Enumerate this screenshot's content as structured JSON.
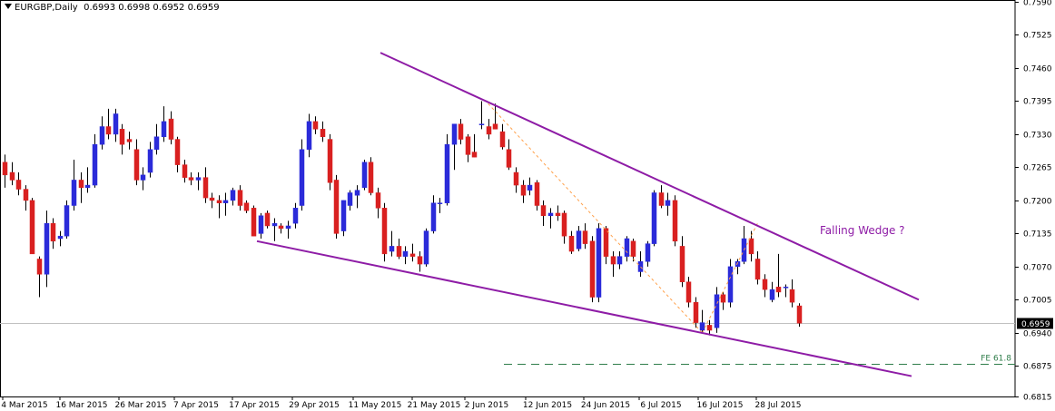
{
  "header": {
    "symbol": "EURGBP,Daily",
    "ohlc": "0.6993 0.6998 0.6952 0.6959"
  },
  "chart_data": {
    "type": "candlestick",
    "symbol": "EURGBP",
    "timeframe": "Daily",
    "ylim": [
      0.6815,
      0.759
    ],
    "y_ticks": [
      "0.7590",
      "0.7525",
      "0.7460",
      "0.7395",
      "0.7330",
      "0.7265",
      "0.7200",
      "0.7135",
      "0.7070",
      "0.7005",
      "0.6940",
      "0.6875",
      "0.6815"
    ],
    "x_ticks": [
      "4 Mar 2015",
      "16 Mar 2015",
      "26 Mar 2015",
      "7 Apr 2015",
      "17 Apr 2015",
      "29 Apr 2015",
      "11 May 2015",
      "21 May 2015",
      "2 Jun 2015",
      "12 Jun 2015",
      "24 Jun 2015",
      "6 Jul 2015",
      "16 Jul 2015",
      "28 Jul 2015"
    ],
    "current_price": "0.6959",
    "colors": {
      "bull": "#2b2bd9",
      "bear": "#d92020",
      "wedge": "#8e1ca6",
      "fib_line": "#ffa04a",
      "fe_line": "#2f7d4a",
      "price_line": "#c0c0c0",
      "annotation": "#8e1ca6"
    },
    "annotations": {
      "pattern": "Falling Wedge ?",
      "fe_level_label": "FE 61.8"
    },
    "fe_level_price": 0.688,
    "candles": [
      {
        "o": 0.7275,
        "h": 0.729,
        "l": 0.7225,
        "c": 0.725
      },
      {
        "o": 0.7255,
        "h": 0.7275,
        "l": 0.723,
        "c": 0.724
      },
      {
        "o": 0.724,
        "h": 0.7255,
        "l": 0.721,
        "c": 0.7222
      },
      {
        "o": 0.7222,
        "h": 0.723,
        "l": 0.718,
        "c": 0.72
      },
      {
        "o": 0.72,
        "h": 0.7205,
        "l": 0.7095,
        "c": 0.7095
      },
      {
        "o": 0.7085,
        "h": 0.709,
        "l": 0.701,
        "c": 0.7055
      },
      {
        "o": 0.7055,
        "h": 0.718,
        "l": 0.703,
        "c": 0.7155
      },
      {
        "o": 0.7155,
        "h": 0.7165,
        "l": 0.7105,
        "c": 0.712
      },
      {
        "o": 0.7125,
        "h": 0.714,
        "l": 0.711,
        "c": 0.713
      },
      {
        "o": 0.713,
        "h": 0.72,
        "l": 0.7125,
        "c": 0.719
      },
      {
        "o": 0.719,
        "h": 0.728,
        "l": 0.718,
        "c": 0.724
      },
      {
        "o": 0.724,
        "h": 0.7255,
        "l": 0.7195,
        "c": 0.7225
      },
      {
        "o": 0.7225,
        "h": 0.7265,
        "l": 0.7215,
        "c": 0.723
      },
      {
        "o": 0.723,
        "h": 0.733,
        "l": 0.7225,
        "c": 0.731
      },
      {
        "o": 0.731,
        "h": 0.7365,
        "l": 0.73,
        "c": 0.7345
      },
      {
        "o": 0.7345,
        "h": 0.738,
        "l": 0.732,
        "c": 0.733
      },
      {
        "o": 0.733,
        "h": 0.738,
        "l": 0.7315,
        "c": 0.737
      },
      {
        "o": 0.734,
        "h": 0.735,
        "l": 0.729,
        "c": 0.731
      },
      {
        "o": 0.732,
        "h": 0.7335,
        "l": 0.73,
        "c": 0.7315
      },
      {
        "o": 0.73,
        "h": 0.732,
        "l": 0.723,
        "c": 0.724
      },
      {
        "o": 0.724,
        "h": 0.7265,
        "l": 0.722,
        "c": 0.725
      },
      {
        "o": 0.7255,
        "h": 0.7315,
        "l": 0.7245,
        "c": 0.73
      },
      {
        "o": 0.73,
        "h": 0.735,
        "l": 0.729,
        "c": 0.7325
      },
      {
        "o": 0.7325,
        "h": 0.7385,
        "l": 0.7315,
        "c": 0.7355
      },
      {
        "o": 0.736,
        "h": 0.7375,
        "l": 0.731,
        "c": 0.732
      },
      {
        "o": 0.732,
        "h": 0.7325,
        "l": 0.7255,
        "c": 0.727
      },
      {
        "o": 0.727,
        "h": 0.728,
        "l": 0.7235,
        "c": 0.7245
      },
      {
        "o": 0.7245,
        "h": 0.7255,
        "l": 0.723,
        "c": 0.724
      },
      {
        "o": 0.724,
        "h": 0.7255,
        "l": 0.722,
        "c": 0.7245
      },
      {
        "o": 0.7245,
        "h": 0.7265,
        "l": 0.7195,
        "c": 0.7205
      },
      {
        "o": 0.7205,
        "h": 0.7215,
        "l": 0.7185,
        "c": 0.72
      },
      {
        "o": 0.72,
        "h": 0.721,
        "l": 0.7165,
        "c": 0.7195
      },
      {
        "o": 0.7195,
        "h": 0.7215,
        "l": 0.717,
        "c": 0.72
      },
      {
        "o": 0.72,
        "h": 0.7225,
        "l": 0.719,
        "c": 0.722
      },
      {
        "o": 0.722,
        "h": 0.723,
        "l": 0.718,
        "c": 0.719
      },
      {
        "o": 0.7195,
        "h": 0.72,
        "l": 0.7175,
        "c": 0.718
      },
      {
        "o": 0.7185,
        "h": 0.719,
        "l": 0.713,
        "c": 0.713
      },
      {
        "o": 0.7135,
        "h": 0.7175,
        "l": 0.7125,
        "c": 0.717
      },
      {
        "o": 0.7175,
        "h": 0.718,
        "l": 0.7145,
        "c": 0.715
      },
      {
        "o": 0.715,
        "h": 0.7165,
        "l": 0.712,
        "c": 0.7155
      },
      {
        "o": 0.715,
        "h": 0.7155,
        "l": 0.7135,
        "c": 0.7145
      },
      {
        "o": 0.7145,
        "h": 0.716,
        "l": 0.7125,
        "c": 0.715
      },
      {
        "o": 0.7155,
        "h": 0.7195,
        "l": 0.7145,
        "c": 0.7185
      },
      {
        "o": 0.719,
        "h": 0.732,
        "l": 0.718,
        "c": 0.73
      },
      {
        "o": 0.73,
        "h": 0.737,
        "l": 0.7285,
        "c": 0.7355
      },
      {
        "o": 0.7355,
        "h": 0.7365,
        "l": 0.733,
        "c": 0.734
      },
      {
        "o": 0.734,
        "h": 0.7355,
        "l": 0.7315,
        "c": 0.7325
      },
      {
        "o": 0.732,
        "h": 0.733,
        "l": 0.722,
        "c": 0.7235
      },
      {
        "o": 0.724,
        "h": 0.725,
        "l": 0.7125,
        "c": 0.7135
      },
      {
        "o": 0.714,
        "h": 0.72,
        "l": 0.713,
        "c": 0.72
      },
      {
        "o": 0.719,
        "h": 0.722,
        "l": 0.718,
        "c": 0.7215
      },
      {
        "o": 0.721,
        "h": 0.723,
        "l": 0.7185,
        "c": 0.722
      },
      {
        "o": 0.7225,
        "h": 0.728,
        "l": 0.722,
        "c": 0.7275
      },
      {
        "o": 0.7275,
        "h": 0.7285,
        "l": 0.721,
        "c": 0.7215
      },
      {
        "o": 0.7215,
        "h": 0.7225,
        "l": 0.7165,
        "c": 0.7185
      },
      {
        "o": 0.7185,
        "h": 0.7195,
        "l": 0.708,
        "c": 0.7095
      },
      {
        "o": 0.71,
        "h": 0.714,
        "l": 0.709,
        "c": 0.711
      },
      {
        "o": 0.711,
        "h": 0.7125,
        "l": 0.7085,
        "c": 0.709
      },
      {
        "o": 0.709,
        "h": 0.711,
        "l": 0.7075,
        "c": 0.71
      },
      {
        "o": 0.7095,
        "h": 0.7115,
        "l": 0.708,
        "c": 0.709
      },
      {
        "o": 0.709,
        "h": 0.71,
        "l": 0.706,
        "c": 0.7075
      },
      {
        "o": 0.7075,
        "h": 0.7145,
        "l": 0.707,
        "c": 0.714
      },
      {
        "o": 0.714,
        "h": 0.721,
        "l": 0.7135,
        "c": 0.7195
      },
      {
        "o": 0.7195,
        "h": 0.7205,
        "l": 0.7175,
        "c": 0.7195
      },
      {
        "o": 0.7195,
        "h": 0.733,
        "l": 0.719,
        "c": 0.731
      },
      {
        "o": 0.731,
        "h": 0.735,
        "l": 0.726,
        "c": 0.735
      },
      {
        "o": 0.735,
        "h": 0.736,
        "l": 0.731,
        "c": 0.732
      },
      {
        "o": 0.7325,
        "h": 0.733,
        "l": 0.7275,
        "c": 0.729
      },
      {
        "o": 0.7295,
        "h": 0.733,
        "l": 0.7285,
        "c": 0.7285
      },
      {
        "o": 0.735,
        "h": 0.7395,
        "l": 0.734,
        "c": 0.735
      },
      {
        "o": 0.7345,
        "h": 0.736,
        "l": 0.732,
        "c": 0.733
      },
      {
        "o": 0.735,
        "h": 0.739,
        "l": 0.734,
        "c": 0.734
      },
      {
        "o": 0.7335,
        "h": 0.735,
        "l": 0.73,
        "c": 0.7305
      },
      {
        "o": 0.73,
        "h": 0.732,
        "l": 0.726,
        "c": 0.7265
      },
      {
        "o": 0.7255,
        "h": 0.7265,
        "l": 0.7215,
        "c": 0.723
      },
      {
        "o": 0.723,
        "h": 0.724,
        "l": 0.7195,
        "c": 0.721
      },
      {
        "o": 0.722,
        "h": 0.7245,
        "l": 0.721,
        "c": 0.723
      },
      {
        "o": 0.7235,
        "h": 0.724,
        "l": 0.718,
        "c": 0.719
      },
      {
        "o": 0.719,
        "h": 0.72,
        "l": 0.715,
        "c": 0.717
      },
      {
        "o": 0.717,
        "h": 0.7185,
        "l": 0.7145,
        "c": 0.7175
      },
      {
        "o": 0.7175,
        "h": 0.719,
        "l": 0.716,
        "c": 0.717
      },
      {
        "o": 0.7175,
        "h": 0.718,
        "l": 0.7115,
        "c": 0.713
      },
      {
        "o": 0.713,
        "h": 0.714,
        "l": 0.7095,
        "c": 0.71
      },
      {
        "o": 0.7105,
        "h": 0.715,
        "l": 0.71,
        "c": 0.714
      },
      {
        "o": 0.714,
        "h": 0.7155,
        "l": 0.7105,
        "c": 0.7115
      },
      {
        "o": 0.712,
        "h": 0.713,
        "l": 0.7,
        "c": 0.701
      },
      {
        "o": 0.701,
        "h": 0.7155,
        "l": 0.7,
        "c": 0.7145
      },
      {
        "o": 0.7145,
        "h": 0.715,
        "l": 0.7075,
        "c": 0.709
      },
      {
        "o": 0.709,
        "h": 0.71,
        "l": 0.705,
        "c": 0.7075
      },
      {
        "o": 0.7075,
        "h": 0.71,
        "l": 0.7065,
        "c": 0.709
      },
      {
        "o": 0.709,
        "h": 0.713,
        "l": 0.708,
        "c": 0.7125
      },
      {
        "o": 0.712,
        "h": 0.7125,
        "l": 0.708,
        "c": 0.709
      },
      {
        "o": 0.706,
        "h": 0.71,
        "l": 0.705,
        "c": 0.708
      },
      {
        "o": 0.708,
        "h": 0.712,
        "l": 0.707,
        "c": 0.7115
      },
      {
        "o": 0.7115,
        "h": 0.722,
        "l": 0.711,
        "c": 0.7215
      },
      {
        "o": 0.7215,
        "h": 0.723,
        "l": 0.7185,
        "c": 0.719
      },
      {
        "o": 0.719,
        "h": 0.7215,
        "l": 0.717,
        "c": 0.72
      },
      {
        "o": 0.72,
        "h": 0.721,
        "l": 0.711,
        "c": 0.712
      },
      {
        "o": 0.711,
        "h": 0.713,
        "l": 0.703,
        "c": 0.704
      },
      {
        "o": 0.704,
        "h": 0.705,
        "l": 0.699,
        "c": 0.7
      },
      {
        "o": 0.7,
        "h": 0.701,
        "l": 0.695,
        "c": 0.696
      },
      {
        "o": 0.6945,
        "h": 0.6985,
        "l": 0.694,
        "c": 0.696
      },
      {
        "o": 0.6955,
        "h": 0.6965,
        "l": 0.6935,
        "c": 0.6945
      },
      {
        "o": 0.695,
        "h": 0.703,
        "l": 0.694,
        "c": 0.7015
      },
      {
        "o": 0.7015,
        "h": 0.702,
        "l": 0.6985,
        "c": 0.7
      },
      {
        "o": 0.7,
        "h": 0.7085,
        "l": 0.699,
        "c": 0.707
      },
      {
        "o": 0.707,
        "h": 0.7085,
        "l": 0.7055,
        "c": 0.708
      },
      {
        "o": 0.708,
        "h": 0.715,
        "l": 0.7075,
        "c": 0.7125
      },
      {
        "o": 0.7125,
        "h": 0.714,
        "l": 0.708,
        "c": 0.7095
      },
      {
        "o": 0.7085,
        "h": 0.71,
        "l": 0.7035,
        "c": 0.7045
      },
      {
        "o": 0.7045,
        "h": 0.7055,
        "l": 0.701,
        "c": 0.7025
      },
      {
        "o": 0.7005,
        "h": 0.704,
        "l": 0.7,
        "c": 0.7025
      },
      {
        "o": 0.703,
        "h": 0.7095,
        "l": 0.701,
        "c": 0.702
      },
      {
        "o": 0.703,
        "h": 0.7035,
        "l": 0.701,
        "c": 0.703
      },
      {
        "o": 0.7025,
        "h": 0.7045,
        "l": 0.699,
        "c": 0.7
      },
      {
        "o": 0.6993,
        "h": 0.6998,
        "l": 0.6952,
        "c": 0.6959
      }
    ]
  }
}
